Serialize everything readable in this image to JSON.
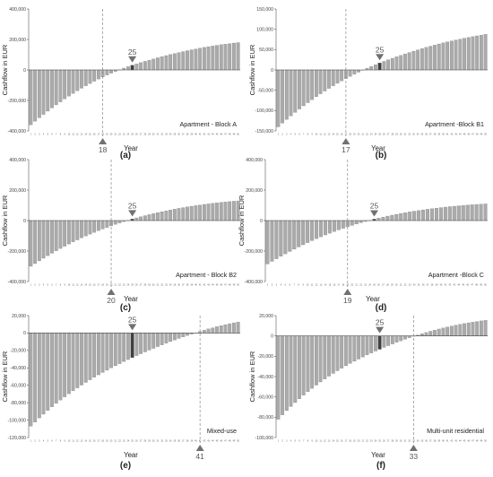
{
  "chart_data": [
    {
      "type": "bar",
      "panel_label": "(a)",
      "series_name": "Apartment - Block A",
      "ylabel": "Cashflow in EUR",
      "xlabel": "Year",
      "ylim": [
        -400000,
        400000
      ],
      "yticks": [
        400000,
        200000,
        0,
        -200000,
        -400000
      ],
      "ytick_labels": [
        "400,000",
        "200,000",
        "0",
        "-200,000",
        "-400,000"
      ],
      "breakeven_year": 18,
      "highlight_year": 25,
      "years": [
        1,
        2,
        3,
        4,
        5,
        6,
        7,
        8,
        9,
        10,
        11,
        12,
        13,
        14,
        15,
        16,
        17,
        18,
        19,
        20,
        21,
        22,
        23,
        24,
        25,
        26,
        27,
        28,
        29,
        30,
        31,
        32,
        33,
        34,
        35,
        36,
        37,
        38,
        39,
        40,
        41,
        42,
        43,
        44,
        45,
        46,
        47,
        48,
        49,
        50
      ],
      "values": [
        -360000,
        -336800,
        -314100,
        -292000,
        -270500,
        -249600,
        -229200,
        -209500,
        -190400,
        -171900,
        -154000,
        -136800,
        -120100,
        -104100,
        -88800,
        -74000,
        -59900,
        -46400,
        -33600,
        -21300,
        -9700,
        1400,
        11800,
        21500,
        30700,
        39500,
        48000,
        56300,
        64300,
        72100,
        79700,
        87100,
        94200,
        101100,
        107700,
        114200,
        120400,
        126400,
        132100,
        137600,
        142900,
        147900,
        152700,
        157200,
        161500,
        165600,
        169400,
        173000,
        176300,
        179400
      ]
    },
    {
      "type": "bar",
      "panel_label": "(b)",
      "series_name": "Apartment -Block B1",
      "ylabel": "Cashflow in EUR",
      "xlabel": "Year",
      "ylim": [
        -150000,
        150000
      ],
      "yticks": [
        150000,
        100000,
        50000,
        0,
        -50000,
        -100000,
        -150000
      ],
      "ytick_labels": [
        "150,000",
        "100,000",
        "50,000",
        "0",
        "-50,000",
        "-100,000",
        "-150,000"
      ],
      "breakeven_year": 17,
      "highlight_year": 25,
      "years": [
        1,
        2,
        3,
        4,
        5,
        6,
        7,
        8,
        9,
        10,
        11,
        12,
        13,
        14,
        15,
        16,
        17,
        18,
        19,
        20,
        21,
        22,
        23,
        24,
        25,
        26,
        27,
        28,
        29,
        30,
        31,
        32,
        33,
        34,
        35,
        36,
        37,
        38,
        39,
        40,
        41,
        42,
        43,
        44,
        45,
        46,
        47,
        48,
        49,
        50
      ],
      "values": [
        -140000,
        -130800,
        -121800,
        -113100,
        -104600,
        -96300,
        -88300,
        -80600,
        -73100,
        -65900,
        -58800,
        -52000,
        -45400,
        -39000,
        -32900,
        -27000,
        -21300,
        -15800,
        -10500,
        -5500,
        -600,
        4100,
        8600,
        12900,
        17000,
        21000,
        24900,
        28700,
        32400,
        36000,
        39500,
        42900,
        46200,
        49400,
        52500,
        55500,
        58400,
        61200,
        63900,
        66500,
        69000,
        71400,
        73700,
        75900,
        78000,
        80000,
        82000,
        83900,
        85800,
        87500
      ]
    },
    {
      "type": "bar",
      "panel_label": "(c)",
      "series_name": "Apartment - Block B2",
      "ylabel": "Cashflow in EUR",
      "xlabel": "Year",
      "ylim": [
        -400000,
        400000
      ],
      "yticks": [
        400000,
        200000,
        0,
        -200000,
        -400000
      ],
      "ytick_labels": [
        "400,000",
        "200,000",
        "0",
        "-200,000",
        "-400,000"
      ],
      "breakeven_year": 20,
      "highlight_year": 25,
      "years": [
        1,
        2,
        3,
        4,
        5,
        6,
        7,
        8,
        9,
        10,
        11,
        12,
        13,
        14,
        15,
        16,
        17,
        18,
        19,
        20,
        21,
        22,
        23,
        24,
        25,
        26,
        27,
        28,
        29,
        30,
        31,
        32,
        33,
        34,
        35,
        36,
        37,
        38,
        39,
        40,
        41,
        42,
        43,
        44,
        45,
        46,
        47,
        48,
        49,
        50
      ],
      "values": [
        -300000,
        -282000,
        -264400,
        -247200,
        -230500,
        -214300,
        -198500,
        -183200,
        -168400,
        -154100,
        -140200,
        -126800,
        -113900,
        -101400,
        -89300,
        -77600,
        -66300,
        -55400,
        -44900,
        -34800,
        -25100,
        -15800,
        -6800,
        1700,
        9800,
        17600,
        25100,
        32300,
        39200,
        45800,
        52100,
        58200,
        64000,
        69600,
        74900,
        80000,
        84900,
        89500,
        94000,
        98200,
        102200,
        106000,
        109600,
        113000,
        116200,
        119200,
        122000,
        124600,
        127000,
        129200
      ]
    },
    {
      "type": "bar",
      "panel_label": "(d)",
      "series_name": "Apartment -Block C",
      "ylabel": "Cashflow in EUR",
      "xlabel": "Year",
      "ylim": [
        -400000,
        400000
      ],
      "yticks": [
        400000,
        200000,
        0,
        -200000,
        -400000
      ],
      "ytick_labels": [
        "400,000",
        "200,000",
        "0",
        "-200,000",
        "-400,000"
      ],
      "breakeven_year": 19,
      "highlight_year": 25,
      "years": [
        1,
        2,
        3,
        4,
        5,
        6,
        7,
        8,
        9,
        10,
        11,
        12,
        13,
        14,
        15,
        16,
        17,
        18,
        19,
        20,
        21,
        22,
        23,
        24,
        25,
        26,
        27,
        28,
        29,
        30,
        31,
        32,
        33,
        34,
        35,
        36,
        37,
        38,
        39,
        40,
        41,
        42,
        43,
        44,
        45,
        46,
        47,
        48,
        49,
        50
      ],
      "values": [
        -285000,
        -267800,
        -250900,
        -234500,
        -218500,
        -202900,
        -187800,
        -173100,
        -158900,
        -145100,
        -131800,
        -118900,
        -106500,
        -94500,
        -83000,
        -71900,
        -61300,
        -51100,
        -41300,
        -31900,
        -22900,
        -14300,
        -6100,
        1700,
        9100,
        16200,
        22900,
        29300,
        35400,
        41200,
        46700,
        51900,
        56900,
        61600,
        66100,
        70300,
        74300,
        78100,
        81700,
        85100,
        88300,
        91300,
        94100,
        96800,
        99300,
        101600,
        103800,
        105800,
        107700,
        109500
      ]
    },
    {
      "type": "bar",
      "panel_label": "(e)",
      "series_name": "Mixed-use",
      "ylabel": "Cashflow in EUR",
      "xlabel": "Year",
      "ylim": [
        -120000,
        20000
      ],
      "yticks": [
        20000,
        0,
        -20000,
        -40000,
        -60000,
        -80000,
        -100000,
        -120000
      ],
      "ytick_labels": [
        "20,000",
        "0",
        "-20,000",
        "-40,000",
        "-60,000",
        "-80,000",
        "-100,000",
        "-120,000"
      ],
      "breakeven_year": 41,
      "highlight_year": 25,
      "years": [
        1,
        2,
        3,
        4,
        5,
        6,
        7,
        8,
        9,
        10,
        11,
        12,
        13,
        14,
        15,
        16,
        17,
        18,
        19,
        20,
        21,
        22,
        23,
        24,
        25,
        26,
        27,
        28,
        29,
        30,
        31,
        32,
        33,
        34,
        35,
        36,
        37,
        38,
        39,
        40,
        41,
        42,
        43,
        44,
        45,
        46,
        47,
        48,
        49,
        50
      ],
      "values": [
        -107000,
        -102200,
        -97600,
        -93200,
        -88900,
        -84800,
        -80800,
        -77000,
        -73300,
        -69700,
        -66300,
        -63000,
        -59800,
        -56700,
        -53700,
        -50800,
        -48000,
        -45300,
        -42700,
        -40100,
        -37600,
        -35200,
        -32800,
        -30500,
        -28200,
        -26000,
        -23800,
        -21700,
        -19600,
        -17600,
        -15600,
        -13600,
        -11700,
        -9800,
        -8000,
        -6200,
        -4500,
        -2800,
        -1200,
        300,
        1800,
        3300,
        4700,
        6000,
        7300,
        8500,
        9600,
        10700,
        11700,
        12600
      ]
    },
    {
      "type": "bar",
      "panel_label": "(f)",
      "series_name": "Multi-unit residential",
      "ylabel": "Cashflow in EUR",
      "xlabel": "Year",
      "ylim": [
        -100000,
        20000
      ],
      "yticks": [
        20000,
        0,
        -20000,
        -40000,
        -60000,
        -80000,
        -100000
      ],
      "ytick_labels": [
        "20,000",
        "0",
        "-20,000",
        "-40,000",
        "-60,000",
        "-80,000",
        "-100,000"
      ],
      "breakeven_year": 33,
      "highlight_year": 25,
      "years": [
        1,
        2,
        3,
        4,
        5,
        6,
        7,
        8,
        9,
        10,
        11,
        12,
        13,
        14,
        15,
        16,
        17,
        18,
        19,
        20,
        21,
        22,
        23,
        24,
        25,
        26,
        27,
        28,
        29,
        30,
        31,
        32,
        33,
        34,
        35,
        36,
        37,
        38,
        39,
        40,
        41,
        42,
        43,
        44,
        45,
        46,
        47,
        48,
        49,
        50
      ],
      "values": [
        -82000,
        -77700,
        -73500,
        -69500,
        -65600,
        -61900,
        -58300,
        -54900,
        -51600,
        -48400,
        -45300,
        -42400,
        -39600,
        -36900,
        -34300,
        -31800,
        -29400,
        -27100,
        -24900,
        -22800,
        -20700,
        -18700,
        -16800,
        -14900,
        -13100,
        -11300,
        -9600,
        -7900,
        -6300,
        -4800,
        -3300,
        -1800,
        -400,
        900,
        2200,
        3400,
        4600,
        5700,
        6800,
        7800,
        8800,
        9700,
        10600,
        11400,
        12200,
        12900,
        13600,
        14200,
        14800,
        15300
      ]
    }
  ],
  "colors": {
    "bar": "#aaaaaa",
    "bar_edge": "#7a7a7a",
    "highlight": "#404040",
    "marker": "#707070",
    "text": "#222222",
    "grid_dash": "#8a8a8a"
  }
}
